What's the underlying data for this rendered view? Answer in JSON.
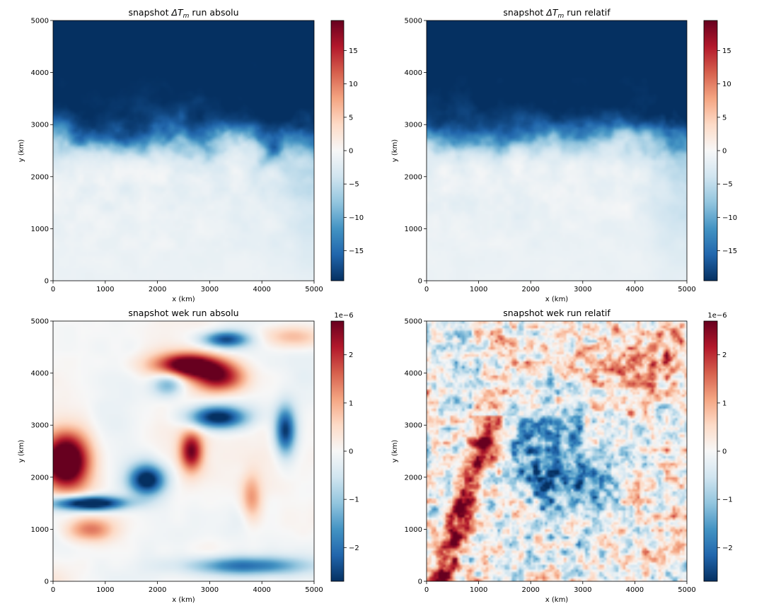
{
  "chart_data": [
    {
      "type": "heatmap",
      "title_prefix": "snapshot ",
      "title_symbol": "ΔT",
      "title_subscript": "m",
      "title_suffix": " run absolu",
      "xlabel": "x (km)",
      "ylabel": "y (km)",
      "xlim": [
        0,
        5000
      ],
      "ylim": [
        0,
        5000
      ],
      "x_ticks": [
        "0",
        "1000",
        "2000",
        "3000",
        "4000",
        "5000"
      ],
      "y_ticks": [
        "0",
        "1000",
        "2000",
        "3000",
        "4000",
        "5000"
      ],
      "colorbar": {
        "range": [
          -19.5,
          19.5
        ],
        "ticks": [
          "−15",
          "−10",
          "−5",
          "0",
          "5",
          "10",
          "15"
        ],
        "tick_values": [
          -15,
          -10,
          -5,
          0,
          5,
          10,
          15
        ],
        "scale_label": ""
      },
      "colormap": "RdBu_r",
      "field": "temperature_front",
      "front_y": 2700,
      "field_notes": "values near -19 above y=3000 km, turbulent transition 2300-3300 km, near -2 below"
    },
    {
      "type": "heatmap",
      "title_prefix": "snapshot ",
      "title_symbol": "ΔT",
      "title_subscript": "m",
      "title_suffix": " run relatif",
      "xlabel": "x (km)",
      "ylabel": "y (km)",
      "xlim": [
        0,
        5000
      ],
      "ylim": [
        0,
        5000
      ],
      "x_ticks": [
        "0",
        "1000",
        "2000",
        "3000",
        "4000",
        "5000"
      ],
      "y_ticks": [
        "0",
        "1000",
        "2000",
        "3000",
        "4000",
        "5000"
      ],
      "colorbar": {
        "range": [
          -19.5,
          19.5
        ],
        "ticks": [
          "−15",
          "−10",
          "−5",
          "0",
          "5",
          "10",
          "15"
        ],
        "tick_values": [
          -15,
          -10,
          -5,
          0,
          5,
          10,
          15
        ],
        "scale_label": ""
      },
      "colormap": "RdBu_r",
      "field": "temperature_front",
      "front_y": 2750,
      "field_notes": "values near -19 above y=3200 km, turbulent transition 2200-3300 km, near -1 below"
    },
    {
      "type": "heatmap",
      "title_prefix": "snapshot wek run absolu",
      "title_symbol": "",
      "title_subscript": "",
      "title_suffix": "",
      "xlabel": "x (km)",
      "ylabel": "y (km)",
      "xlim": [
        0,
        5000
      ],
      "ylim": [
        0,
        5000
      ],
      "x_ticks": [
        "0",
        "1000",
        "2000",
        "3000",
        "4000",
        "5000"
      ],
      "y_ticks": [
        "0",
        "1000",
        "2000",
        "3000",
        "4000",
        "5000"
      ],
      "colorbar": {
        "range": [
          -2.7,
          2.7
        ],
        "ticks": [
          "−2",
          "−1",
          "0",
          "1",
          "2"
        ],
        "tick_values": [
          -2,
          -1,
          0,
          1,
          2
        ],
        "scale_label": "1e−6"
      },
      "colormap": "RdBu_r",
      "field": "smooth_blobs",
      "field_notes": "large smooth bands; strong positive near (300,2300) and (2700,4100); strong negative band near (800,1500) and (3200,3100)"
    },
    {
      "type": "heatmap",
      "title_prefix": "snapshot wek run relatif",
      "title_symbol": "",
      "title_subscript": "",
      "title_suffix": "",
      "xlabel": "x (km)",
      "ylabel": "y (km)",
      "xlim": [
        0,
        5000
      ],
      "ylim": [
        0,
        5000
      ],
      "x_ticks": [
        "0",
        "1000",
        "2000",
        "3000",
        "4000",
        "5000"
      ],
      "y_ticks": [
        "0",
        "1000",
        "2000",
        "3000",
        "4000",
        "5000"
      ],
      "colorbar": {
        "range": [
          -2.7,
          2.7
        ],
        "ticks": [
          "−2",
          "−1",
          "0",
          "1",
          "2"
        ],
        "tick_values": [
          -2,
          -1,
          0,
          1,
          2
        ],
        "scale_label": "1e−6"
      },
      "colormap": "RdBu_r",
      "field": "turbulent",
      "field_notes": "small-scale turbulent field; positive diagonal band from (200,0) to (1200,3000); negative region near (2200,2300); positive top-right"
    }
  ]
}
